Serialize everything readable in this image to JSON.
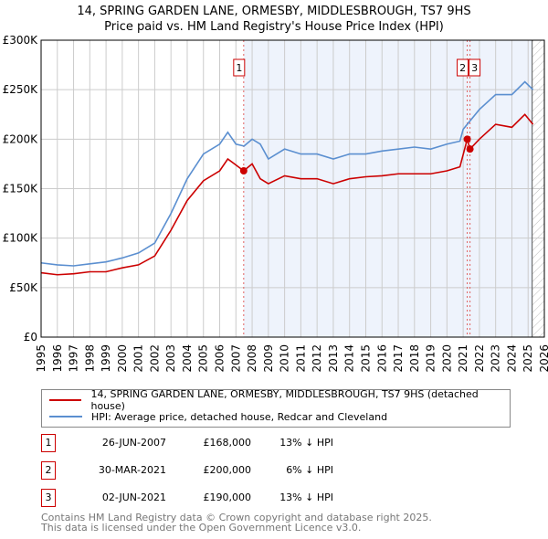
{
  "title_line1": "14, SPRING GARDEN LANE, ORMESBY, MIDDLESBROUGH, TS7 9HS",
  "title_line2": "Price paid vs. HM Land Registry's House Price Index (HPI)",
  "chart_data": {
    "type": "line",
    "ylim": [
      0,
      300000
    ],
    "xlim": [
      1995,
      2026
    ],
    "y_ticks": [
      {
        "v": 0,
        "label": "£0"
      },
      {
        "v": 50000,
        "label": "£50K"
      },
      {
        "v": 100000,
        "label": "£100K"
      },
      {
        "v": 150000,
        "label": "£150K"
      },
      {
        "v": 200000,
        "label": "£200K"
      },
      {
        "v": 250000,
        "label": "£250K"
      },
      {
        "v": 300000,
        "label": "£300K"
      }
    ],
    "x_ticks": [
      "1995",
      "1996",
      "1997",
      "1998",
      "1999",
      "2000",
      "2001",
      "2002",
      "2003",
      "2004",
      "2005",
      "2006",
      "2007",
      "2008",
      "2009",
      "2010",
      "2011",
      "2012",
      "2013",
      "2014",
      "2015",
      "2016",
      "2017",
      "2018",
      "2019",
      "2020",
      "2021",
      "2022",
      "2023",
      "2024",
      "2025",
      "2026"
    ],
    "series": [
      {
        "name": "14, SPRING GARDEN LANE, ORMESBY, MIDDLESBROUGH, TS7 9HS (detached house)",
        "color": "#cc0000",
        "x": [
          1995,
          1996,
          1997,
          1998,
          1999,
          2000,
          2001,
          2002,
          2003,
          2004,
          2005,
          2006,
          2006.5,
          2007.48,
          2008,
          2008.5,
          2009,
          2010,
          2011,
          2012,
          2013,
          2014,
          2015,
          2016,
          2017,
          2018,
          2019,
          2020,
          2020.8,
          2021.25,
          2021.42,
          2022,
          2023,
          2024,
          2024.8,
          2025.3
        ],
        "y": [
          65000,
          63000,
          64000,
          66000,
          66000,
          70000,
          73000,
          82000,
          108000,
          138000,
          158000,
          168000,
          180000,
          168000,
          175000,
          160000,
          155000,
          163000,
          160000,
          160000,
          155000,
          160000,
          162000,
          163000,
          165000,
          165000,
          165000,
          168000,
          172000,
          200000,
          190000,
          200000,
          215000,
          212000,
          225000,
          215000
        ]
      },
      {
        "name": "HPI: Average price, detached house, Redcar and Cleveland",
        "color": "#5b8fd0",
        "x": [
          1995,
          1996,
          1997,
          1998,
          1999,
          2000,
          2001,
          2002,
          2003,
          2004,
          2005,
          2006,
          2006.5,
          2007,
          2007.5,
          2008,
          2008.5,
          2009,
          2010,
          2011,
          2012,
          2013,
          2014,
          2015,
          2016,
          2017,
          2018,
          2019,
          2020,
          2020.8,
          2021,
          2022,
          2023,
          2024,
          2024.8,
          2025.3
        ],
        "y": [
          75000,
          73000,
          72000,
          74000,
          76000,
          80000,
          85000,
          95000,
          125000,
          160000,
          185000,
          195000,
          207000,
          195000,
          193000,
          200000,
          195000,
          180000,
          190000,
          185000,
          185000,
          180000,
          185000,
          185000,
          188000,
          190000,
          192000,
          190000,
          195000,
          198000,
          210000,
          230000,
          245000,
          245000,
          258000,
          250000
        ]
      }
    ],
    "sales": [
      {
        "id": "1",
        "x": 2007.48,
        "y": 168000
      },
      {
        "id": "2",
        "x": 2021.25,
        "y": 200000
      },
      {
        "id": "3",
        "x": 2021.42,
        "y": 190000
      }
    ]
  },
  "legend": {
    "red": "14, SPRING GARDEN LANE, ORMESBY, MIDDLESBROUGH, TS7 9HS (detached house)",
    "blue": "HPI: Average price, detached house, Redcar and Cleveland"
  },
  "table": [
    {
      "id": "1",
      "date": "26-JUN-2007",
      "price": "£168,000",
      "hpi": "13% ↓ HPI"
    },
    {
      "id": "2",
      "date": "30-MAR-2021",
      "price": "£200,000",
      "hpi": "6% ↓ HPI"
    },
    {
      "id": "3",
      "date": "02-JUN-2021",
      "price": "£190,000",
      "hpi": "13% ↓ HPI"
    }
  ],
  "footer1": "Contains HM Land Registry data © Crown copyright and database right 2025.",
  "footer2": "This data is licensed under the Open Government Licence v3.0."
}
